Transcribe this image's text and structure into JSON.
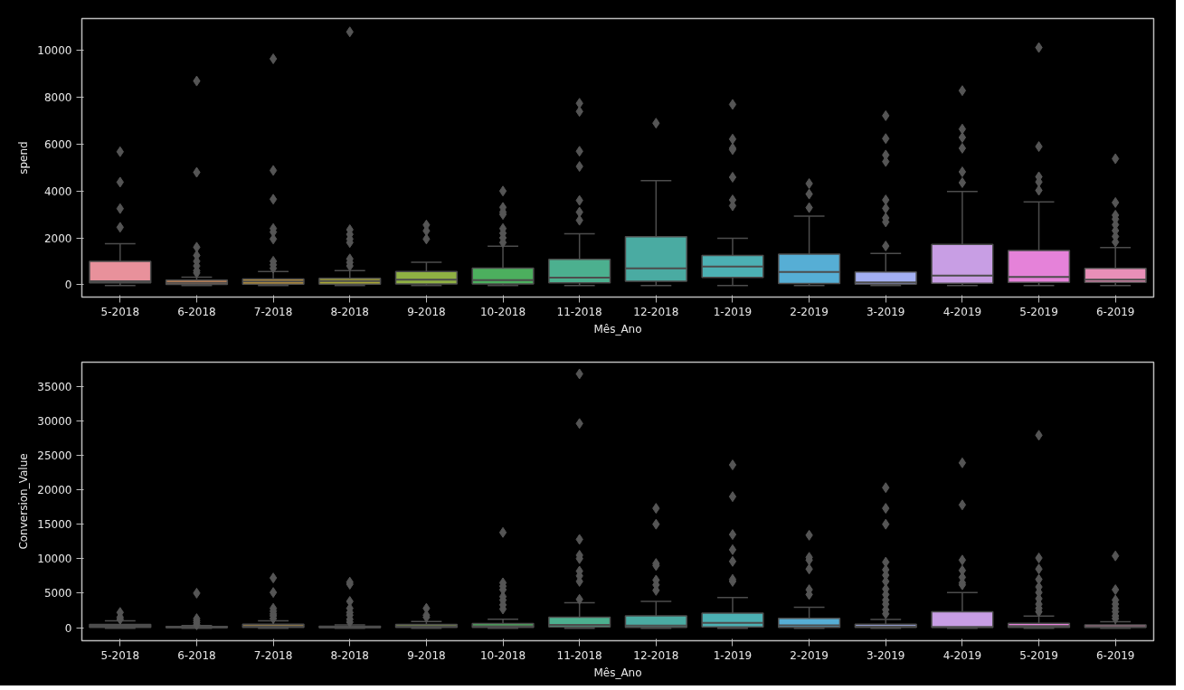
{
  "chart_data": [
    {
      "type": "box",
      "xlabel": "Mês_Ano",
      "ylabel": "spend",
      "ylim": [
        -530,
        11370
      ],
      "yticks": [
        0,
        2000,
        4000,
        6000,
        8000,
        10000
      ],
      "categories": [
        "5-2018",
        "6-2018",
        "7-2018",
        "8-2018",
        "9-2018",
        "10-2018",
        "11-2018",
        "12-2018",
        "1-2019",
        "2-2019",
        "3-2019",
        "4-2019",
        "5-2019",
        "6-2019"
      ],
      "colors": [
        "#e8919b",
        "#cf8a5a",
        "#c79a3a",
        "#a8a636",
        "#8fb043",
        "#4caf5e",
        "#4cb08f",
        "#4aaba2",
        "#4cb0b3",
        "#56aed5",
        "#a4b0f2",
        "#c89ee4",
        "#e582d9",
        "#e88fb8"
      ],
      "boxes": [
        {
          "low": -40,
          "q1": 80,
          "median": 145,
          "q3": 1000,
          "high": 1750,
          "outliers": [
            5680,
            4380,
            3250,
            2450
          ]
        },
        {
          "low": -40,
          "q1": 10,
          "median": 80,
          "q3": 190,
          "high": 320,
          "outliers": [
            8700,
            4800,
            1600,
            1250,
            1000,
            800,
            600,
            500
          ]
        },
        {
          "low": -40,
          "q1": 20,
          "median": 140,
          "q3": 240,
          "high": 560,
          "outliers": [
            9650,
            4880,
            3650,
            2400,
            2250,
            1950,
            1000,
            850,
            700
          ]
        },
        {
          "low": -40,
          "q1": 20,
          "median": 160,
          "q3": 270,
          "high": 600,
          "outliers": [
            10800,
            2350,
            2150,
            1950,
            1800,
            1100,
            950,
            800
          ]
        },
        {
          "low": -40,
          "q1": 30,
          "median": 210,
          "q3": 560,
          "high": 960,
          "outliers": [
            2550,
            2300,
            1950
          ]
        },
        {
          "low": -40,
          "q1": 30,
          "median": 190,
          "q3": 710,
          "high": 1640,
          "outliers": [
            4000,
            3300,
            3100,
            3000,
            2400,
            2200,
            2000,
            1800
          ]
        },
        {
          "low": -40,
          "q1": 80,
          "median": 300,
          "q3": 1080,
          "high": 2170,
          "outliers": [
            7750,
            7400,
            5700,
            5050,
            3600,
            3100,
            2750
          ]
        },
        {
          "low": -40,
          "q1": 150,
          "median": 700,
          "q3": 2050,
          "high": 4440,
          "outliers": [
            6900
          ]
        },
        {
          "low": -40,
          "q1": 310,
          "median": 770,
          "q3": 1250,
          "high": 1980,
          "outliers": [
            7700,
            6220,
            5830,
            5770,
            4590,
            3620,
            3370
          ]
        },
        {
          "low": -40,
          "q1": 50,
          "median": 540,
          "q3": 1310,
          "high": 2930,
          "outliers": [
            4320,
            3870,
            3290
          ]
        },
        {
          "low": -40,
          "q1": 20,
          "median": 100,
          "q3": 540,
          "high": 1330,
          "outliers": [
            7220,
            6240,
            5540,
            5260,
            3620,
            3260,
            2850,
            2680,
            1650
          ]
        },
        {
          "low": -40,
          "q1": 60,
          "median": 390,
          "q3": 1720,
          "high": 3980,
          "outliers": [
            8290,
            6650,
            6290,
            5830,
            4820,
            4360
          ]
        },
        {
          "low": -40,
          "q1": 100,
          "median": 330,
          "q3": 1460,
          "high": 3540,
          "outliers": [
            10130,
            5900,
            4610,
            4390,
            4030
          ]
        },
        {
          "low": -40,
          "q1": 100,
          "median": 210,
          "q3": 700,
          "high": 1590,
          "outliers": [
            5380,
            3510,
            2970,
            2800,
            2560,
            2310,
            2060,
            1820
          ]
        }
      ]
    },
    {
      "type": "box",
      "xlabel": "Mês_Ano",
      "ylabel": "Conversion_Value",
      "ylim": [
        -1900,
        38500
      ],
      "yticks": [
        0,
        5000,
        10000,
        15000,
        20000,
        25000,
        30000,
        35000
      ],
      "categories": [
        "5-2018",
        "6-2018",
        "7-2018",
        "8-2018",
        "9-2018",
        "10-2018",
        "11-2018",
        "12-2018",
        "1-2019",
        "2-2019",
        "3-2019",
        "4-2019",
        "5-2019",
        "6-2019"
      ],
      "colors": [
        "#e8919b",
        "#cf8a5a",
        "#c79a3a",
        "#a8a636",
        "#8fb043",
        "#4caf5e",
        "#4cb08f",
        "#4aaba2",
        "#4cb0b3",
        "#56aed5",
        "#a4b0f2",
        "#c89ee4",
        "#e582d9",
        "#e88fb8"
      ],
      "boxes": [
        {
          "low": -100,
          "q1": 50,
          "median": 250,
          "q3": 450,
          "high": 1000,
          "outliers": [
            2200,
            1500,
            1200
          ]
        },
        {
          "low": -100,
          "q1": 0,
          "median": 50,
          "q3": 150,
          "high": 300,
          "outliers": [
            5000,
            1300,
            1000,
            700,
            400
          ]
        },
        {
          "low": -100,
          "q1": 50,
          "median": 200,
          "q3": 500,
          "high": 1000,
          "outliers": [
            7200,
            5100,
            2800,
            2400,
            2000,
            1700,
            1300
          ]
        },
        {
          "low": -100,
          "q1": 0,
          "median": 50,
          "q3": 200,
          "high": 400,
          "outliers": [
            6600,
            6300,
            3800,
            2800,
            2200,
            1800,
            1200,
            800
          ]
        },
        {
          "low": -100,
          "q1": 50,
          "median": 200,
          "q3": 450,
          "high": 900,
          "outliers": [
            2800,
            1800,
            1500
          ]
        },
        {
          "low": -100,
          "q1": 50,
          "median": 200,
          "q3": 600,
          "high": 1200,
          "outliers": [
            13800,
            6500,
            6000,
            5500,
            4500,
            4000,
            3300,
            2700
          ]
        },
        {
          "low": -100,
          "q1": 100,
          "median": 400,
          "q3": 1500,
          "high": 3600,
          "outliers": [
            36800,
            29600,
            12800,
            10500,
            10000,
            8200,
            7500,
            6700,
            4100
          ]
        },
        {
          "low": -100,
          "q1": 50,
          "median": 300,
          "q3": 1700,
          "high": 3800,
          "outliers": [
            17300,
            15000,
            9300,
            9000,
            6900,
            6200,
            5400
          ]
        },
        {
          "low": -100,
          "q1": 100,
          "median": 700,
          "q3": 2100,
          "high": 4350,
          "outliers": [
            23600,
            19000,
            13500,
            11300,
            9600,
            7000,
            6700
          ]
        },
        {
          "low": -100,
          "q1": 50,
          "median": 330,
          "q3": 1340,
          "high": 2950,
          "outliers": [
            13400,
            10200,
            9800,
            8500,
            5500,
            4800
          ]
        },
        {
          "low": -100,
          "q1": 30,
          "median": 170,
          "q3": 500,
          "high": 1170,
          "outliers": [
            20300,
            17300,
            15000,
            9500,
            8400,
            7600,
            6700,
            5600,
            4800,
            4000,
            3400,
            2600,
            2000
          ]
        },
        {
          "low": -100,
          "q1": 30,
          "median": 100,
          "q3": 2300,
          "high": 5100,
          "outliers": [
            23900,
            17800,
            9800,
            8300,
            7300,
            6500,
            6200
          ]
        },
        {
          "low": -100,
          "q1": 30,
          "median": 220,
          "q3": 610,
          "high": 1670,
          "outliers": [
            27900,
            10100,
            8500,
            7000,
            5900,
            5100,
            4200,
            3400,
            2800,
            2300
          ]
        },
        {
          "low": -100,
          "q1": 20,
          "median": 110,
          "q3": 390,
          "high": 840,
          "outliers": [
            10400,
            5500,
            4000,
            3400,
            2800,
            2300,
            1700,
            1300
          ]
        }
      ]
    }
  ]
}
